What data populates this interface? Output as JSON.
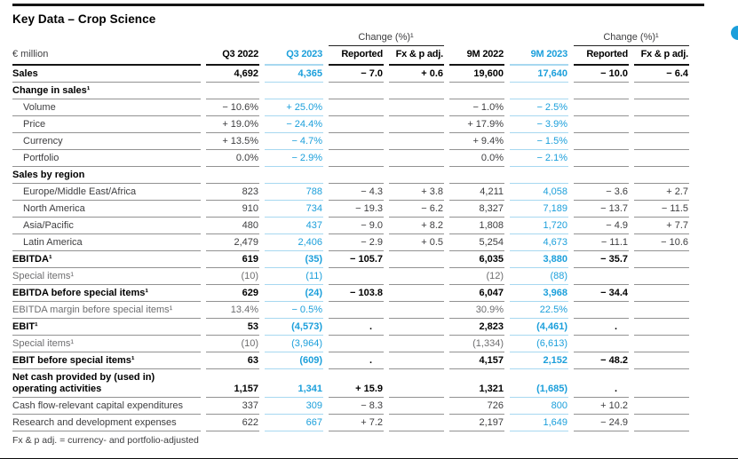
{
  "title": "Key Data – Crop Science",
  "unit_label": "€ million",
  "change_label": "Change (%)¹",
  "footnote": "Fx & p adj. = currency- and portfolio-adjusted",
  "colors": {
    "accent_blue": "#1b9fdb",
    "light_blue_rule": "#a7d8f0",
    "gray_rule": "#929292"
  },
  "columns": [
    "Q3 2022",
    "Q3 2023",
    "Reported",
    "Fx & p adj.",
    "9M 2022",
    "9M 2023",
    "Reported",
    "Fx & p adj."
  ],
  "rows": [
    {
      "label": "Sales",
      "style": "bold",
      "values": [
        "4,692",
        "4,365",
        "− 7.0",
        "+ 0.6",
        "19,600",
        "17,640",
        "− 10.0",
        "− 6.4"
      ]
    },
    {
      "label": "Change in sales¹",
      "style": "section",
      "values": [
        "",
        "",
        "",
        "",
        "",
        "",
        "",
        ""
      ]
    },
    {
      "label": "Volume",
      "style": "indent",
      "values": [
        "− 10.6%",
        "+ 25.0%",
        "",
        "",
        "− 1.0%",
        "− 2.5%",
        "",
        ""
      ]
    },
    {
      "label": "Price",
      "style": "indent",
      "values": [
        "+ 19.0%",
        "− 24.4%",
        "",
        "",
        "+ 17.9%",
        "− 3.9%",
        "",
        ""
      ]
    },
    {
      "label": "Currency",
      "style": "indent",
      "values": [
        "+ 13.5%",
        "− 4.7%",
        "",
        "",
        "+ 9.4%",
        "− 1.5%",
        "",
        ""
      ]
    },
    {
      "label": "Portfolio",
      "style": "indent",
      "values": [
        "0.0%",
        "− 2.9%",
        "",
        "",
        "0.0%",
        "− 2.1%",
        "",
        ""
      ]
    },
    {
      "label": "Sales by region",
      "style": "section",
      "values": [
        "",
        "",
        "",
        "",
        "",
        "",
        "",
        ""
      ]
    },
    {
      "label": "Europe/Middle East/Africa",
      "style": "indent",
      "values": [
        "823",
        "788",
        "− 4.3",
        "+ 3.8",
        "4,211",
        "4,058",
        "− 3.6",
        "+ 2.7"
      ]
    },
    {
      "label": "North America",
      "style": "indent",
      "values": [
        "910",
        "734",
        "− 19.3",
        "− 6.2",
        "8,327",
        "7,189",
        "− 13.7",
        "− 11.5"
      ]
    },
    {
      "label": "Asia/Pacific",
      "style": "indent",
      "values": [
        "480",
        "437",
        "− 9.0",
        "+ 8.2",
        "1,808",
        "1,720",
        "− 4.9",
        "+ 7.7"
      ]
    },
    {
      "label": "Latin America",
      "style": "indent",
      "values": [
        "2,479",
        "2,406",
        "− 2.9",
        "+ 0.5",
        "5,254",
        "4,673",
        "− 11.1",
        "− 10.6"
      ]
    },
    {
      "label": "EBITDA¹",
      "style": "bold",
      "values": [
        "619",
        "(35)",
        "− 105.7",
        "",
        "6,035",
        "3,880",
        "− 35.7",
        ""
      ]
    },
    {
      "label": "Special items¹",
      "style": "gray",
      "values": [
        "(10)",
        "(11)",
        "",
        "",
        "(12)",
        "(88)",
        "",
        ""
      ]
    },
    {
      "label": "EBITDA before special items¹",
      "style": "bold",
      "values": [
        "629",
        "(24)",
        "− 103.8",
        "",
        "6,047",
        "3,968",
        "− 34.4",
        ""
      ]
    },
    {
      "label": "EBITDA margin before special items¹",
      "style": "gray",
      "values": [
        "13.4%",
        "− 0.5%",
        "",
        "",
        "30.9%",
        "22.5%",
        "",
        ""
      ]
    },
    {
      "label": "EBIT¹",
      "style": "bold",
      "values": [
        "53",
        "(4,573)",
        ".",
        "",
        "2,823",
        "(4,461)",
        ".",
        ""
      ]
    },
    {
      "label": "Special items¹",
      "style": "gray",
      "values": [
        "(10)",
        "(3,964)",
        "",
        "",
        "(1,334)",
        "(6,613)",
        "",
        ""
      ]
    },
    {
      "label": "EBIT before special items¹",
      "style": "bold",
      "values": [
        "63",
        "(609)",
        ".",
        "",
        "4,157",
        "2,152",
        "− 48.2",
        ""
      ]
    },
    {
      "label": "Net cash provided by (used in) operating activities",
      "style": "bold",
      "values": [
        "1,157",
        "1,341",
        "+ 15.9",
        "",
        "1,321",
        "(1,685)",
        ".",
        ""
      ]
    },
    {
      "label": "Cash flow-relevant capital expenditures",
      "style": "regular",
      "values": [
        "337",
        "309",
        "− 8.3",
        "",
        "726",
        "800",
        "+ 10.2",
        ""
      ]
    },
    {
      "label": "Research and development expenses",
      "style": "regular",
      "values": [
        "622",
        "667",
        "+ 7.2",
        "",
        "2,197",
        "1,649",
        "− 24.9",
        ""
      ]
    }
  ]
}
